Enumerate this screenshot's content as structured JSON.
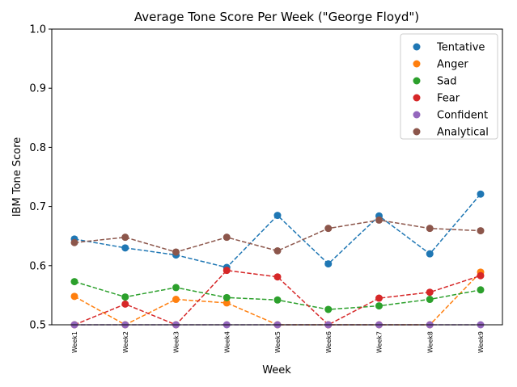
{
  "chart_data": {
    "type": "line",
    "title": "Average Tone Score Per Week (\"George Floyd\")",
    "xlabel": "Week",
    "ylabel": "IBM Tone Score",
    "ylim": [
      0.5,
      1.0
    ],
    "yticks": [
      "0.5",
      "0.6",
      "0.7",
      "0.8",
      "0.9",
      "1.0"
    ],
    "categories": [
      "Week1",
      "Week2",
      "Week3",
      "Week4",
      "Week5",
      "Week6",
      "Week7",
      "Week8",
      "Week9"
    ],
    "legend_position": "top-right",
    "series": [
      {
        "name": "Tentative",
        "color": "#1f77b4",
        "values": [
          0.645,
          0.63,
          0.618,
          0.597,
          0.685,
          0.603,
          0.684,
          0.62,
          0.721
        ]
      },
      {
        "name": "Anger",
        "color": "#ff7f0e",
        "values": [
          0.548,
          0.5,
          0.543,
          0.537,
          0.5,
          0.5,
          0.5,
          0.5,
          0.589
        ]
      },
      {
        "name": "Sad",
        "color": "#2ca02c",
        "values": [
          0.573,
          0.547,
          0.563,
          0.546,
          0.542,
          0.526,
          0.532,
          0.543,
          0.559
        ]
      },
      {
        "name": "Fear",
        "color": "#d62728",
        "values": [
          0.5,
          0.535,
          0.5,
          0.592,
          0.581,
          0.5,
          0.545,
          0.555,
          0.583
        ]
      },
      {
        "name": "Confident",
        "color": "#9467bd",
        "values": [
          0.5,
          0.5,
          0.5,
          0.5,
          0.5,
          0.5,
          0.5,
          0.5,
          0.5
        ]
      },
      {
        "name": "Analytical",
        "color": "#8c564b",
        "values": [
          0.639,
          0.648,
          0.623,
          0.648,
          0.625,
          0.663,
          0.677,
          0.663,
          0.659
        ]
      }
    ]
  }
}
